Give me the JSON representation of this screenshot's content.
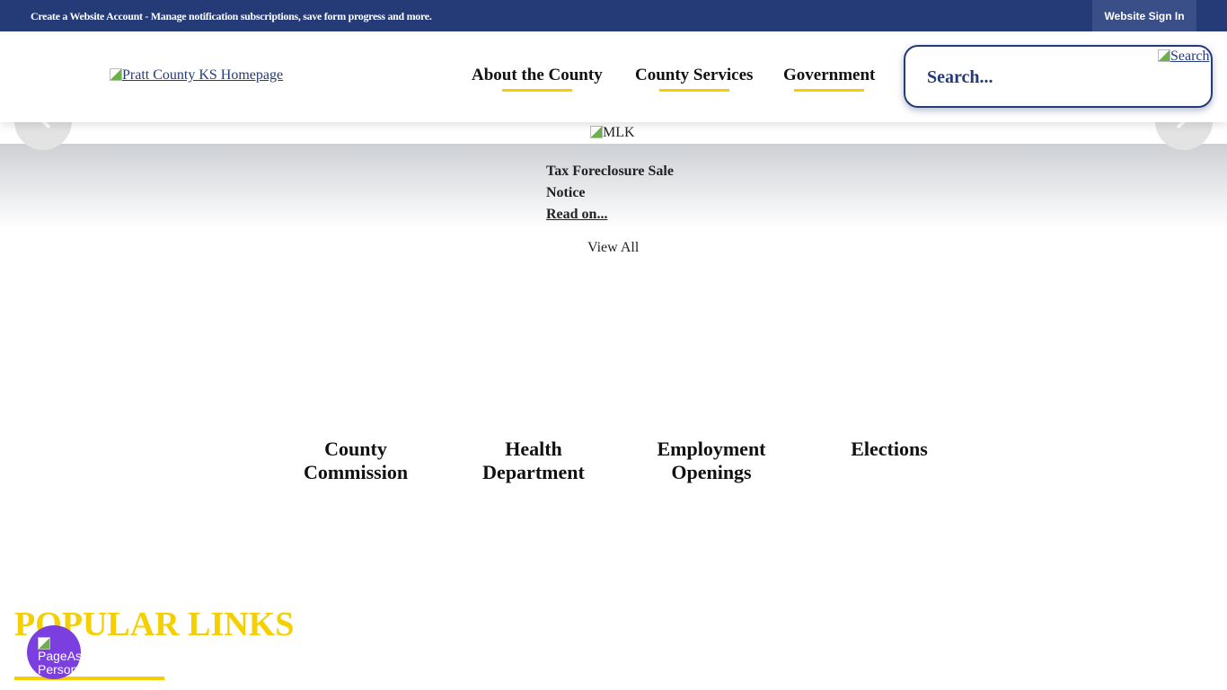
{
  "topbar": {
    "message": "Create a Website Account - Manage notification subscriptions, save form progress and more.",
    "sign_in": "Website Sign In"
  },
  "header": {
    "logo_alt": "Pratt County KS Homepage",
    "nav": [
      "About the County",
      "County Services",
      "Government"
    ],
    "search_placeholder": "Search...",
    "search_button_alt": "Search"
  },
  "colors": {
    "primary": "#253b78",
    "accent": "#f5cf00",
    "page_assist": "#7b3fe0"
  },
  "slider": {
    "image_alt": "MLK"
  },
  "news": {
    "title": "Tax Foreclosure Sale Notice",
    "read_on": "Read on...",
    "view_all": "View All"
  },
  "quick_links": [
    "County Commission",
    "Health Department",
    "Employment Openings",
    "Elections"
  ],
  "popular": {
    "heading": "POPULAR LINKS"
  },
  "page_assist": {
    "alt": "PageAssist Personalization"
  }
}
